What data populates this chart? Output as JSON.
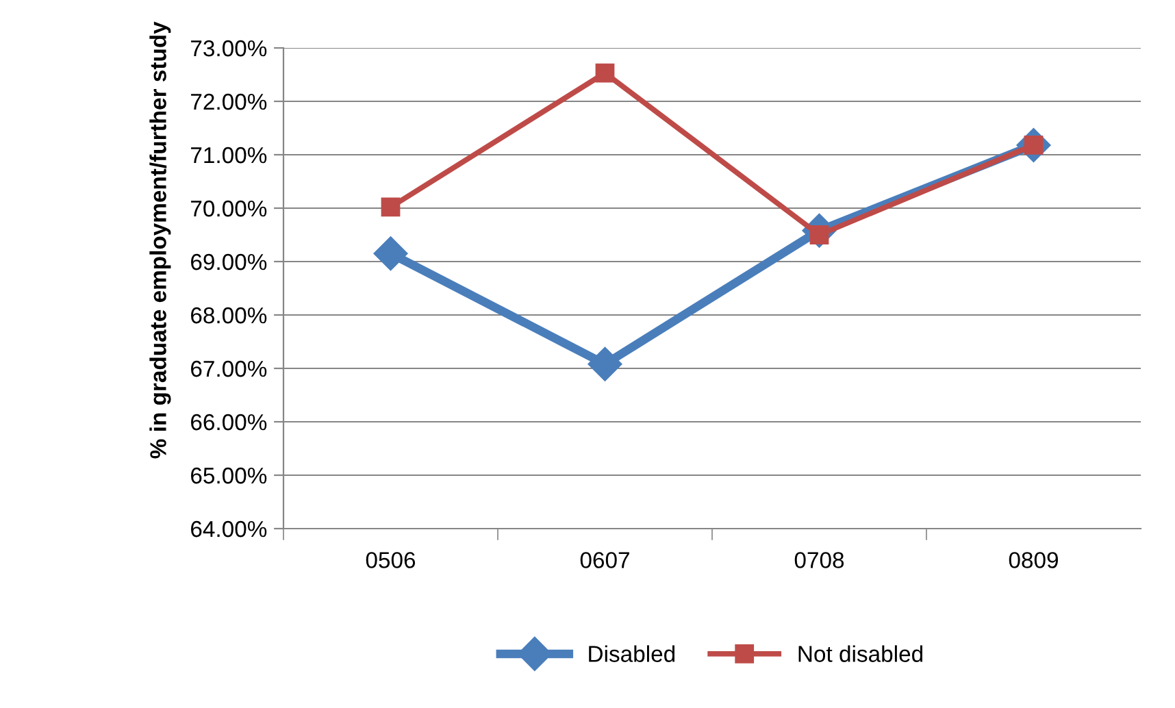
{
  "chart_data": {
    "type": "line",
    "ylabel": "% in graduate employment/further study",
    "categories": [
      "0506",
      "0607",
      "0708",
      "0809"
    ],
    "series": [
      {
        "name": "Disabled",
        "color": "#4a7ebb",
        "marker": "diamond",
        "values": [
          69.15,
          67.08,
          69.58,
          71.18
        ]
      },
      {
        "name": "Not disabled",
        "color": "#be4b48",
        "marker": "square",
        "values": [
          70.02,
          72.53,
          69.5,
          71.18
        ]
      }
    ],
    "ylim": [
      64,
      73
    ],
    "yticks": [
      {
        "value": 64,
        "label": "64.00%"
      },
      {
        "value": 65,
        "label": "65.00%"
      },
      {
        "value": 66,
        "label": "66.00%"
      },
      {
        "value": 67,
        "label": "67.00%"
      },
      {
        "value": 68,
        "label": "68.00%"
      },
      {
        "value": 69,
        "label": "69.00%"
      },
      {
        "value": 70,
        "label": "70.00%"
      },
      {
        "value": 71,
        "label": "71.00%"
      },
      {
        "value": 72,
        "label": "72.00%"
      },
      {
        "value": 73,
        "label": "73.00%"
      }
    ],
    "grid": "y",
    "legend": "bottom"
  }
}
